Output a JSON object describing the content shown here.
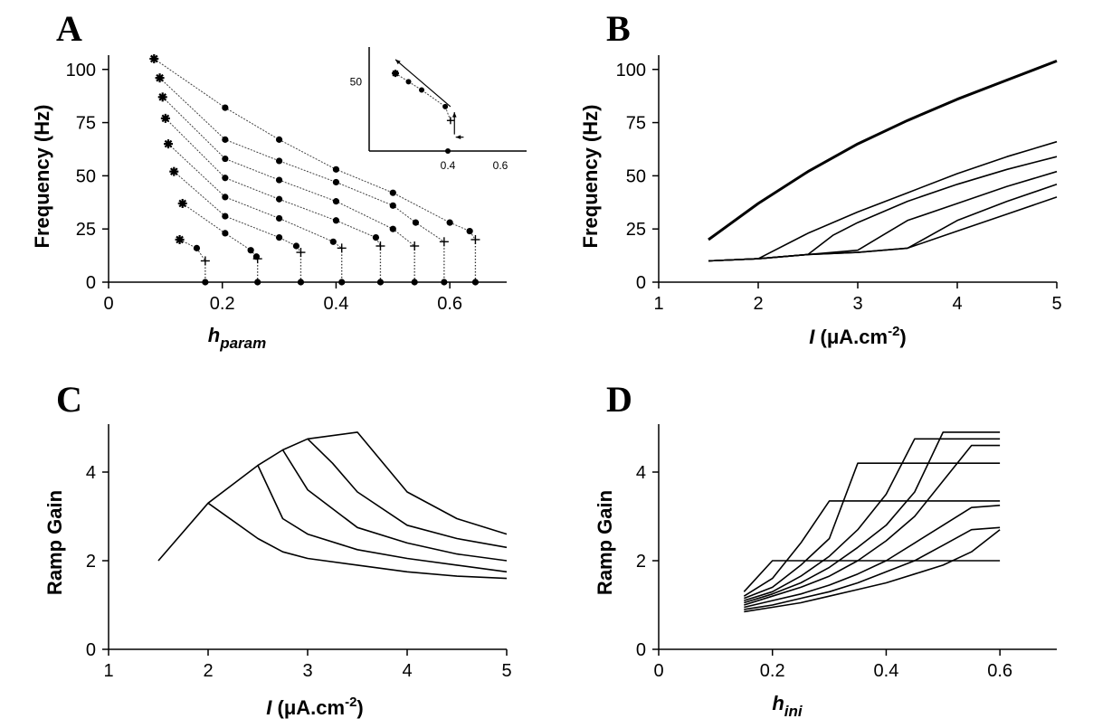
{
  "chart_data": [
    {
      "panel": "A",
      "type": "scatter",
      "ylabel": "Frequency (Hz)",
      "xlabel_main": "h",
      "xlabel_sub": "param",
      "xlim": [
        0,
        0.7
      ],
      "ylim": [
        0,
        105
      ],
      "xticks": [
        0,
        0.2,
        0.4,
        0.6
      ],
      "xtick_labels": [
        "0",
        "0.2",
        "0.4",
        "0.6"
      ],
      "yticks": [
        0,
        25,
        50,
        75,
        100
      ],
      "ytick_labels": [
        "0",
        "25",
        "50",
        "75",
        "100"
      ],
      "series": [
        {
          "stars": [
            [
              0.125,
              20
            ]
          ],
          "dots": [
            [
              0.155,
              16
            ]
          ],
          "plus": [
            0.17,
            10
          ],
          "baseline": [
            0.17,
            0
          ]
        },
        {
          "stars": [
            [
              0.13,
              37
            ]
          ],
          "dots": [
            [
              0.205,
              23
            ],
            [
              0.25,
              15
            ],
            [
              0.26,
              12
            ]
          ],
          "plus": [
            0.262,
            11
          ],
          "baseline": [
            0.262,
            0
          ]
        },
        {
          "stars": [
            [
              0.115,
              52
            ]
          ],
          "dots": [
            [
              0.205,
              31
            ],
            [
              0.3,
              21
            ],
            [
              0.33,
              17
            ]
          ],
          "plus": [
            0.338,
            14
          ],
          "baseline": [
            0.338,
            0
          ]
        },
        {
          "stars": [
            [
              0.105,
              65
            ]
          ],
          "dots": [
            [
              0.205,
              40
            ],
            [
              0.3,
              30
            ],
            [
              0.395,
              19
            ]
          ],
          "plus": [
            0.41,
            16
          ],
          "baseline": [
            0.41,
            0
          ]
        },
        {
          "stars": [
            [
              0.1,
              77
            ]
          ],
          "dots": [
            [
              0.205,
              49
            ],
            [
              0.3,
              39
            ],
            [
              0.4,
              29
            ],
            [
              0.47,
              21
            ]
          ],
          "plus": [
            0.478,
            17
          ],
          "baseline": [
            0.478,
            0
          ]
        },
        {
          "stars": [
            [
              0.095,
              87
            ]
          ],
          "dots": [
            [
              0.205,
              58
            ],
            [
              0.3,
              48
            ],
            [
              0.4,
              38
            ],
            [
              0.5,
              25
            ]
          ],
          "plus": [
            0.538,
            17
          ],
          "baseline": [
            0.538,
            0
          ]
        },
        {
          "stars": [
            [
              0.09,
              96
            ]
          ],
          "dots": [
            [
              0.205,
              67
            ],
            [
              0.3,
              57
            ],
            [
              0.4,
              47
            ],
            [
              0.5,
              36
            ],
            [
              0.54,
              28
            ]
          ],
          "plus": [
            0.59,
            19
          ],
          "baseline": [
            0.59,
            0
          ]
        },
        {
          "stars": [
            [
              0.08,
              105
            ]
          ],
          "dots": [
            [
              0.205,
              82
            ],
            [
              0.3,
              67
            ],
            [
              0.4,
              53
            ],
            [
              0.5,
              42
            ],
            [
              0.6,
              28
            ],
            [
              0.635,
              24
            ]
          ],
          "plus": [
            0.645,
            20
          ],
          "baseline": [
            0.645,
            0
          ]
        }
      ],
      "inset": {
        "xticks": [
          0.4,
          0.6
        ],
        "xtick_labels": [
          "0.4",
          "0.6"
        ],
        "yticks": [
          50
        ],
        "ytick_labels": [
          "50"
        ],
        "xlim": [
          0.1,
          0.7
        ],
        "ylim": [
          0,
          75
        ],
        "stars": [
          [
            0.2,
            56
          ]
        ],
        "dots": [
          [
            0.25,
            50
          ],
          [
            0.3,
            44
          ],
          [
            0.39,
            32
          ],
          [
            0.4,
            0
          ]
        ],
        "plus": [
          0.41,
          22
        ]
      }
    },
    {
      "panel": "B",
      "type": "line",
      "ylabel": "Frequency (Hz)",
      "xlabel_main": "I",
      "xlabel_rest": " (μA.cm",
      "xlabel_sup": "-2",
      "xlabel_end": ")",
      "xlim": [
        1,
        5
      ],
      "ylim": [
        0,
        105
      ],
      "xticks": [
        1,
        2,
        3,
        4,
        5
      ],
      "xtick_labels": [
        "1",
        "2",
        "3",
        "4",
        "5"
      ],
      "yticks": [
        0,
        25,
        50,
        75,
        100
      ],
      "ytick_labels": [
        "0",
        "25",
        "50",
        "75",
        "100"
      ],
      "series": [
        {
          "x": [
            1.5,
            2,
            2.5,
            3,
            3.5,
            4,
            4.5,
            5
          ],
          "y": [
            20,
            37,
            52,
            65,
            76,
            86,
            95,
            104
          ],
          "bold": true
        },
        {
          "x": [
            1.5,
            2,
            2.5,
            3,
            3.5,
            4,
            4.5,
            5
          ],
          "y": [
            10,
            11,
            23,
            33,
            42,
            51,
            59,
            66
          ]
        },
        {
          "x": [
            1.5,
            2,
            2.5,
            2.75,
            3,
            3.5,
            4,
            4.5,
            5
          ],
          "y": [
            10,
            11,
            13,
            22,
            28,
            38,
            46,
            53,
            59
          ]
        },
        {
          "x": [
            1.5,
            2,
            2.5,
            3,
            3.25,
            3.5,
            4,
            4.5,
            5
          ],
          "y": [
            10,
            11,
            13,
            15,
            22,
            29,
            37,
            45,
            52
          ]
        },
        {
          "x": [
            1.5,
            2,
            2.5,
            3,
            3.5,
            4,
            4.5,
            5
          ],
          "y": [
            10,
            11,
            13,
            14,
            16,
            29,
            38,
            46
          ]
        },
        {
          "x": [
            1.5,
            2,
            2.5,
            3,
            3.5,
            4,
            4.5,
            5
          ],
          "y": [
            10,
            11,
            13,
            14,
            16,
            24,
            32,
            40
          ]
        }
      ]
    },
    {
      "panel": "C",
      "type": "line",
      "ylabel": "Ramp Gain",
      "xlabel_main": "I",
      "xlabel_rest": " (μA.cm",
      "xlabel_sup": "-2",
      "xlabel_end": ")",
      "xlim": [
        1,
        5
      ],
      "ylim": [
        0,
        5
      ],
      "xticks": [
        1,
        2,
        3,
        4,
        5
      ],
      "xtick_labels": [
        "1",
        "2",
        "3",
        "4",
        "5"
      ],
      "yticks": [
        0,
        2,
        4
      ],
      "ytick_labels": [
        "0",
        "2",
        "4"
      ],
      "series": [
        {
          "x": [
            1.5,
            2,
            2.5,
            2.75,
            3,
            3.5,
            4,
            4.5,
            5
          ],
          "y": [
            2.0,
            3.3,
            2.5,
            2.2,
            2.05,
            1.9,
            1.75,
            1.65,
            1.6
          ]
        },
        {
          "x": [
            2,
            2.5,
            2.75,
            3,
            3.5,
            4,
            4.5,
            5
          ],
          "y": [
            3.3,
            4.15,
            2.95,
            2.6,
            2.25,
            2.05,
            1.9,
            1.75
          ]
        },
        {
          "x": [
            2.5,
            2.75,
            3,
            3.5,
            4,
            4.5,
            5
          ],
          "y": [
            4.15,
            4.5,
            3.6,
            2.75,
            2.4,
            2.15,
            2.0
          ]
        },
        {
          "x": [
            2.75,
            3,
            3.25,
            3.5,
            4,
            4.5,
            5
          ],
          "y": [
            4.5,
            4.75,
            4.2,
            3.55,
            2.8,
            2.5,
            2.3
          ]
        },
        {
          "x": [
            3,
            3.5,
            4,
            4.5,
            5
          ],
          "y": [
            4.75,
            4.9,
            3.55,
            2.95,
            2.6
          ]
        }
      ]
    },
    {
      "panel": "D",
      "type": "line",
      "ylabel": "Ramp Gain",
      "xlabel_main": "h",
      "xlabel_sub": "ini",
      "xlim": [
        0,
        0.7
      ],
      "ylim": [
        0,
        5
      ],
      "xticks": [
        0,
        0.2,
        0.4,
        0.6
      ],
      "xtick_labels": [
        "0",
        "0.2",
        "0.4",
        "0.6"
      ],
      "yticks": [
        0,
        2,
        4
      ],
      "ytick_labels": [
        "0",
        "2",
        "4"
      ],
      "series": [
        {
          "x": [
            0.15,
            0.2,
            0.6
          ],
          "y": [
            1.3,
            2.0,
            2.0
          ]
        },
        {
          "x": [
            0.15,
            0.2,
            0.25,
            0.3,
            0.6
          ],
          "y": [
            1.2,
            1.6,
            2.4,
            3.35,
            3.35
          ]
        },
        {
          "x": [
            0.15,
            0.2,
            0.25,
            0.3,
            0.35,
            0.6
          ],
          "y": [
            1.15,
            1.4,
            1.9,
            2.5,
            4.2,
            4.2
          ]
        },
        {
          "x": [
            0.15,
            0.2,
            0.25,
            0.3,
            0.35,
            0.4,
            0.45,
            0.6
          ],
          "y": [
            1.1,
            1.3,
            1.65,
            2.1,
            2.7,
            3.5,
            4.75,
            4.75
          ]
        },
        {
          "x": [
            0.15,
            0.2,
            0.25,
            0.3,
            0.35,
            0.4,
            0.45,
            0.5,
            0.6
          ],
          "y": [
            1.05,
            1.25,
            1.5,
            1.85,
            2.3,
            2.8,
            3.55,
            4.9,
            4.9
          ]
        },
        {
          "x": [
            0.15,
            0.2,
            0.25,
            0.3,
            0.35,
            0.4,
            0.45,
            0.5,
            0.55,
            0.6
          ],
          "y": [
            1.0,
            1.2,
            1.4,
            1.65,
            2.0,
            2.45,
            3.0,
            3.8,
            4.6,
            4.6
          ]
        },
        {
          "x": [
            0.15,
            0.2,
            0.25,
            0.3,
            0.35,
            0.4,
            0.45,
            0.5,
            0.55,
            0.6
          ],
          "y": [
            0.95,
            1.1,
            1.25,
            1.45,
            1.7,
            2.0,
            2.4,
            2.8,
            3.2,
            3.25
          ]
        },
        {
          "x": [
            0.15,
            0.2,
            0.25,
            0.3,
            0.35,
            0.4,
            0.45,
            0.5,
            0.55,
            0.6
          ],
          "y": [
            0.9,
            1.0,
            1.15,
            1.3,
            1.5,
            1.75,
            2.0,
            2.35,
            2.7,
            2.75
          ]
        },
        {
          "x": [
            0.15,
            0.2,
            0.25,
            0.3,
            0.35,
            0.4,
            0.45,
            0.5,
            0.55,
            0.6
          ],
          "y": [
            0.85,
            0.95,
            1.05,
            1.2,
            1.35,
            1.5,
            1.7,
            1.9,
            2.2,
            2.7
          ]
        }
      ]
    }
  ]
}
